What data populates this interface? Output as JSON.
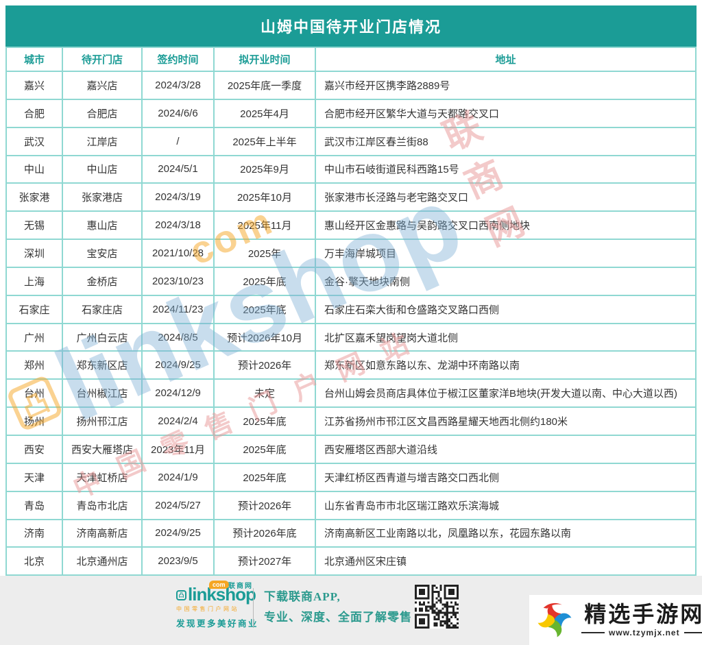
{
  "chart_data": {
    "type": "table",
    "title": "山姆中国待开业门店情况",
    "columns": [
      "城市",
      "待开门店",
      "签约时间",
      "拟开业时间",
      "地址"
    ],
    "rows": [
      [
        "嘉兴",
        "嘉兴店",
        "2024/3/28",
        "2025年底一季度",
        "嘉兴市经开区携李路2889号"
      ],
      [
        "合肥",
        "合肥店",
        "2024/6/6",
        "2025年4月",
        "合肥市经开区繁华大道与天都路交叉口"
      ],
      [
        "武汉",
        "江岸店",
        "/",
        "2025年上半年",
        "武汉市江岸区春兰街88"
      ],
      [
        "中山",
        "中山店",
        "2024/5/1",
        "2025年9月",
        "中山市石岐街道民科西路15号"
      ],
      [
        "张家港",
        "张家港店",
        "2024/3/19",
        "2025年10月",
        "张家港市长泾路与老宅路交叉口"
      ],
      [
        "无锡",
        "惠山店",
        "2024/3/18",
        "2025年11月",
        "惠山经开区金惠路与吴韵路交叉口西南侧地块"
      ],
      [
        "深圳",
        "宝安店",
        "2021/10/28",
        "2025年",
        "万丰海岸城项目"
      ],
      [
        "上海",
        "金桥店",
        "2023/10/23",
        "2025年底",
        "金谷·擎天地块南侧"
      ],
      [
        "石家庄",
        "石家庄店",
        "2024/11/23",
        "2025年底",
        "石家庄石栾大街和仓盛路交叉路口西侧"
      ],
      [
        "广州",
        "广州白云店",
        "2024/8/5",
        "预计2026年10月",
        "北扩区嘉禾望岗望岗大道北侧"
      ],
      [
        "郑州",
        "郑东新区店",
        "2024/9/25",
        "预计2026年",
        "郑东新区如意东路以东、龙湖中环南路以南"
      ],
      [
        "台州",
        "台州椒江店",
        "2024/12/9",
        "未定",
        "台州山姆会员商店具体位于椒江区董家洋B地块(开发大道以南、中心大道以西)"
      ],
      [
        "扬州",
        "扬州邗江店",
        "2024/2/4",
        "2025年底",
        "江苏省扬州市邗江区文昌西路星耀天地西北侧约180米"
      ],
      [
        "西安",
        "西安大雁塔店",
        "2023年11月",
        "2025年底",
        "西安雁塔区西部大道沿线"
      ],
      [
        "天津",
        "天津虹桥店",
        "2024/1/9",
        "2025年底",
        "天津红桥区西青道与增吉路交口西北侧"
      ],
      [
        "青岛",
        "青岛市北店",
        "2024/5/27",
        "预计2026年",
        "山东省青岛市市北区瑞江路欢乐滨海城"
      ],
      [
        "济南",
        "济南高新店",
        "2024/9/25",
        "预计2026年底",
        "济南高新区工业南路以北，凤凰路以东，花园东路以南"
      ],
      [
        "北京",
        "北京通州店",
        "2023/9/5",
        "预计2027年",
        "北京通州区宋庄镇"
      ]
    ]
  },
  "watermark": {
    "brand": "linkshop",
    "com_badge": "com",
    "icon_glyph": "凸",
    "site_name": "联商网",
    "tagline": "中国零售门户网站"
  },
  "footer": {
    "logo": {
      "brand": "linkshop",
      "com_badge": "com",
      "icon_glyph": "凸",
      "site_name": "联商网",
      "sub_text": "中国零售门户网站",
      "slogan": "发现更多美好商业"
    },
    "promo_line1": "下载联商APP,",
    "promo_line2": "专业、深度、全面了解零售",
    "partner": {
      "name": "精选手游网",
      "url": "www.tzymjx.net"
    }
  },
  "colors": {
    "teal": "#1b9c96",
    "teal_border": "#8fd8d2",
    "orange": "#f5a623",
    "text": "#333333",
    "footer_bg": "#ededed",
    "watermark_blue": "rgba(125,175,212,0.42)",
    "watermark_pink": "rgba(232,150,150,0.5)",
    "watermark_orange": "rgba(245,166,35,0.5)"
  }
}
